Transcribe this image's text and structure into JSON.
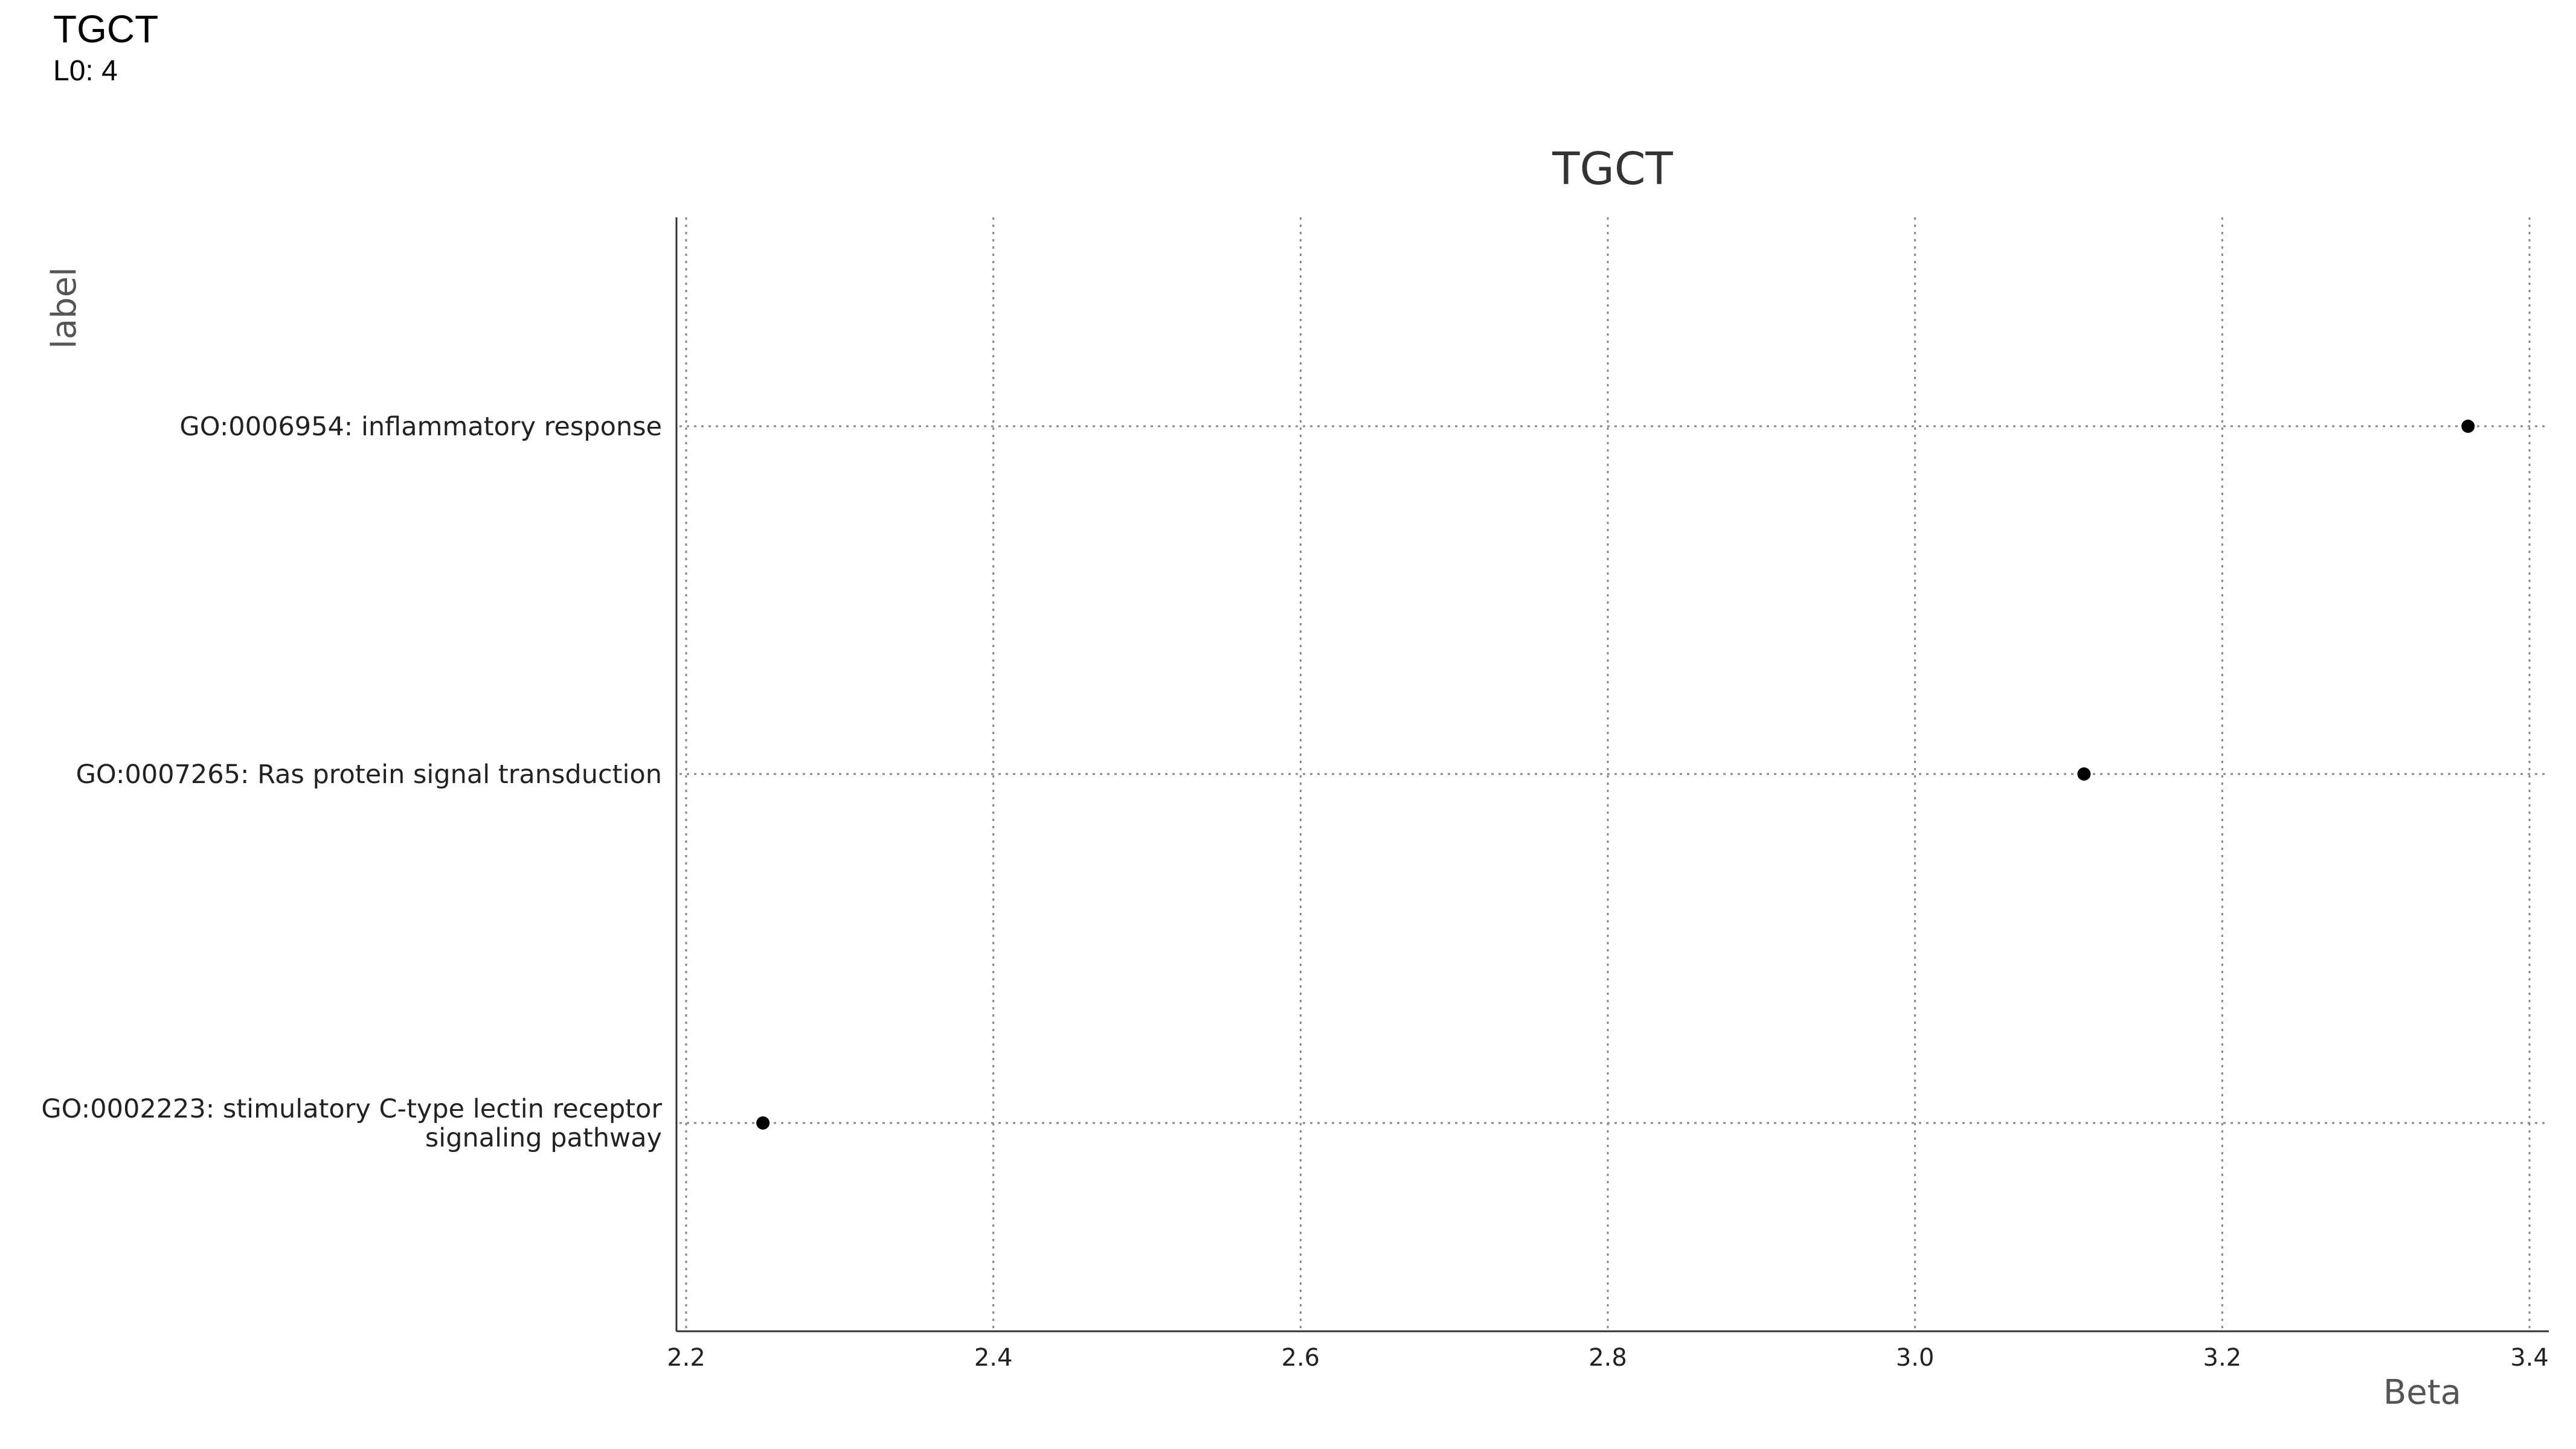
{
  "header": {
    "title": "TGCT",
    "subtitle": "L0: 4"
  },
  "chart_data": {
    "type": "scatter",
    "title": "TGCT",
    "xlabel": "Beta",
    "ylabel": "label",
    "xlim": [
      2.2,
      3.42
    ],
    "xticks": [
      2.2,
      2.4,
      2.6,
      2.8,
      3.0,
      3.2,
      3.4
    ],
    "xtick_labels": [
      "2.2",
      "2.4",
      "2.6",
      "2.8",
      "3.0",
      "3.2",
      "3.4"
    ],
    "categories": [
      [
        "GO:0006954: inflammatory response"
      ],
      [
        "GO:0007265: Ras protein signal transduction"
      ],
      [
        "GO:0002223: stimulatory C-type lectin receptor",
        "signaling pathway"
      ]
    ],
    "values": [
      3.36,
      3.11,
      2.25
    ],
    "grid": true,
    "point_color": "#000000",
    "grid_color": "#888888"
  }
}
